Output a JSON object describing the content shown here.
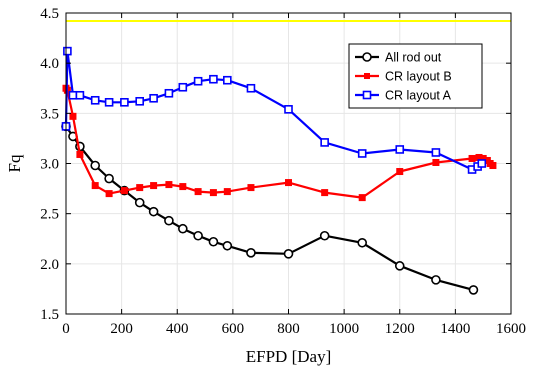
{
  "chart_data": {
    "type": "line",
    "xlabel": "EFPD [Day]",
    "ylabel": "Fq",
    "xlim": [
      0,
      1600
    ],
    "ylim": [
      1.5,
      4.5
    ],
    "xticks": [
      0,
      200,
      400,
      600,
      800,
      1000,
      1200,
      1400,
      1600
    ],
    "yticks": [
      1.5,
      2.0,
      2.5,
      3.0,
      3.5,
      4.0,
      4.5
    ],
    "xtick_labels": [
      "0",
      "200",
      "400",
      "600",
      "800",
      "1000",
      "1200",
      "1400",
      "1600"
    ],
    "ytick_labels": [
      "1.5",
      "2.0",
      "2.5",
      "3.0",
      "3.5",
      "4.0",
      "4.5"
    ],
    "grid": true,
    "legend_position": "top-right",
    "reference_line": {
      "y": 4.42,
      "color": "#ffff00"
    },
    "series": [
      {
        "name": "All rod out",
        "color": "#000000",
        "marker": "circle",
        "x": [
          0,
          25,
          50,
          105,
          155,
          210,
          265,
          315,
          370,
          420,
          475,
          530,
          580,
          665,
          800,
          930,
          1065,
          1200,
          1330,
          1465
        ],
        "y": [
          3.37,
          3.27,
          3.17,
          2.98,
          2.85,
          2.73,
          2.61,
          2.52,
          2.43,
          2.35,
          2.28,
          2.22,
          2.18,
          2.11,
          2.1,
          2.28,
          2.21,
          1.98,
          1.84,
          1.74
        ]
      },
      {
        "name": "CR layout B",
        "color": "#ff0000",
        "marker": "square",
        "x": [
          0,
          5,
          25,
          50,
          105,
          155,
          210,
          265,
          315,
          370,
          420,
          475,
          530,
          580,
          665,
          800,
          930,
          1065,
          1200,
          1330,
          1460,
          1485,
          1500,
          1515,
          1525,
          1535
        ],
        "y": [
          3.75,
          3.73,
          3.47,
          3.09,
          2.78,
          2.7,
          2.73,
          2.76,
          2.78,
          2.79,
          2.77,
          2.72,
          2.71,
          2.72,
          2.76,
          2.81,
          2.71,
          2.66,
          2.92,
          3.01,
          3.05,
          3.06,
          3.05,
          3.03,
          3.0,
          2.98
        ]
      },
      {
        "name": "CR layout A",
        "color": "#0000ff",
        "marker": "square",
        "x": [
          0,
          5,
          25,
          50,
          105,
          155,
          210,
          265,
          315,
          370,
          420,
          475,
          530,
          580,
          665,
          800,
          930,
          1065,
          1200,
          1330,
          1460,
          1480,
          1495
        ],
        "y": [
          3.37,
          4.12,
          3.68,
          3.68,
          3.63,
          3.61,
          3.61,
          3.62,
          3.65,
          3.7,
          3.76,
          3.82,
          3.84,
          3.83,
          3.75,
          3.54,
          3.21,
          3.1,
          3.14,
          3.11,
          2.94,
          2.97,
          3.0
        ]
      }
    ]
  }
}
